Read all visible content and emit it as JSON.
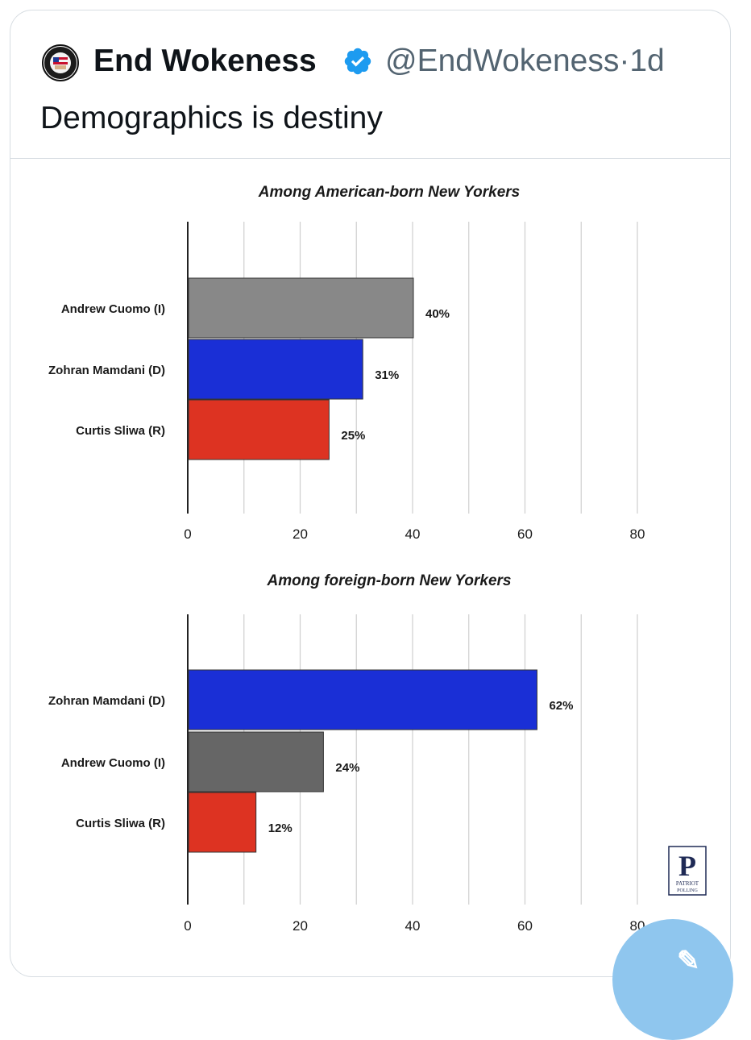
{
  "tweet": {
    "display_name": "End Wokeness",
    "handle": "@EndWokeness",
    "separator": "·",
    "time_ago": "1d",
    "text": "Demographics is destiny",
    "avatar_icon": "patch-logo-icon",
    "verified_icon": "verified-badge-icon",
    "verified_color": "#1d9bf0"
  },
  "watermark": {
    "letter": "P",
    "caption_line1": "PATRIOT",
    "caption_line2": "POLLING"
  },
  "compose_button": {
    "icon": "compose-icon",
    "color": "#8fc6ee"
  },
  "chart_data": [
    {
      "type": "bar",
      "orientation": "horizontal",
      "title": "Among American-born New Yorkers",
      "categories": [
        "Andrew Cuomo (I)",
        "Zohran Mamdani (D)",
        "Curtis Sliwa (R)"
      ],
      "values": [
        40,
        31,
        25
      ],
      "value_labels": [
        "40%",
        "31%",
        "25%"
      ],
      "colors": [
        "#888888",
        "#1a2fd6",
        "#dd3322"
      ],
      "xlim": [
        0,
        80
      ],
      "x_ticks": [
        "0",
        "20",
        "40",
        "60",
        "80"
      ],
      "grid": true
    },
    {
      "type": "bar",
      "orientation": "horizontal",
      "title": "Among foreign-born New Yorkers",
      "categories": [
        "Zohran Mamdani (D)",
        "Andrew Cuomo (I)",
        "Curtis Sliwa (R)"
      ],
      "values": [
        62,
        24,
        12
      ],
      "value_labels": [
        "62%",
        "24%",
        "12%"
      ],
      "colors": [
        "#1a2fd6",
        "#666666",
        "#dd3322"
      ],
      "xlim": [
        0,
        80
      ],
      "x_ticks": [
        "0",
        "20",
        "40",
        "60",
        "80"
      ],
      "grid": true
    }
  ]
}
